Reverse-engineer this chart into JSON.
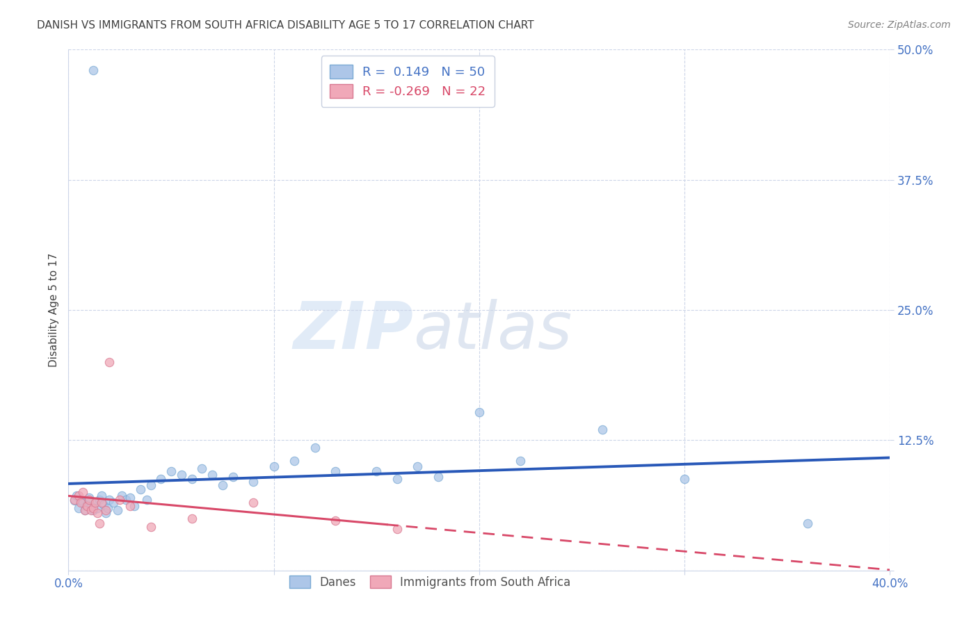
{
  "title": "DANISH VS IMMIGRANTS FROM SOUTH AFRICA DISABILITY AGE 5 TO 17 CORRELATION CHART",
  "source": "Source: ZipAtlas.com",
  "ylabel": "Disability Age 5 to 17",
  "xlim": [
    0.0,
    0.4
  ],
  "ylim": [
    0.0,
    0.5
  ],
  "xticks": [
    0.0,
    0.1,
    0.2,
    0.3,
    0.4
  ],
  "xticklabels": [
    "0.0%",
    "",
    "",
    "",
    "40.0%"
  ],
  "yticks": [
    0.0,
    0.125,
    0.25,
    0.375,
    0.5
  ],
  "yticklabels": [
    "",
    "12.5%",
    "25.0%",
    "37.5%",
    "50.0%"
  ],
  "danish_color": "#adc6e8",
  "danish_edge_color": "#7aaad4",
  "immigrant_color": "#f0a8b8",
  "immigrant_edge_color": "#d87890",
  "trend_danish_color": "#2858b8",
  "trend_immigrant_color": "#d84868",
  "R_danish": 0.149,
  "N_danish": 50,
  "R_immigrant": -0.269,
  "N_immigrant": 22,
  "legend_label_danish": "Danes",
  "legend_label_immigrant": "Immigrants from South Africa",
  "watermark_zip": "ZIP",
  "watermark_atlas": "atlas",
  "background_color": "#ffffff",
  "grid_color": "#ccd5e8",
  "title_color": "#404040",
  "axis_label_color": "#4472c4",
  "source_color": "#808080",
  "danish_x": [
    0.003,
    0.004,
    0.005,
    0.006,
    0.007,
    0.008,
    0.009,
    0.01,
    0.011,
    0.012,
    0.013,
    0.014,
    0.015,
    0.016,
    0.017,
    0.018,
    0.019,
    0.02,
    0.022,
    0.024,
    0.026,
    0.028,
    0.03,
    0.032,
    0.035,
    0.038,
    0.04,
    0.045,
    0.05,
    0.055,
    0.06,
    0.065,
    0.07,
    0.075,
    0.08,
    0.09,
    0.1,
    0.11,
    0.12,
    0.13,
    0.15,
    0.16,
    0.17,
    0.18,
    0.2,
    0.22,
    0.26,
    0.3,
    0.36,
    0.012
  ],
  "danish_y": [
    0.067,
    0.072,
    0.06,
    0.068,
    0.065,
    0.058,
    0.063,
    0.07,
    0.062,
    0.058,
    0.065,
    0.06,
    0.068,
    0.072,
    0.063,
    0.055,
    0.06,
    0.068,
    0.065,
    0.058,
    0.072,
    0.068,
    0.07,
    0.062,
    0.078,
    0.068,
    0.082,
    0.088,
    0.095,
    0.092,
    0.088,
    0.098,
    0.092,
    0.082,
    0.09,
    0.085,
    0.1,
    0.105,
    0.118,
    0.095,
    0.095,
    0.088,
    0.1,
    0.09,
    0.152,
    0.105,
    0.135,
    0.088,
    0.045,
    0.48
  ],
  "immigrant_x": [
    0.003,
    0.005,
    0.006,
    0.007,
    0.008,
    0.009,
    0.01,
    0.011,
    0.012,
    0.013,
    0.014,
    0.015,
    0.016,
    0.018,
    0.02,
    0.025,
    0.03,
    0.04,
    0.06,
    0.09,
    0.13,
    0.16
  ],
  "immigrant_y": [
    0.068,
    0.072,
    0.065,
    0.075,
    0.058,
    0.062,
    0.068,
    0.058,
    0.06,
    0.065,
    0.055,
    0.045,
    0.065,
    0.058,
    0.2,
    0.068,
    0.062,
    0.042,
    0.05,
    0.065,
    0.048,
    0.04
  ],
  "trend_solid_end": 0.155,
  "trend_dash_start": 0.155
}
